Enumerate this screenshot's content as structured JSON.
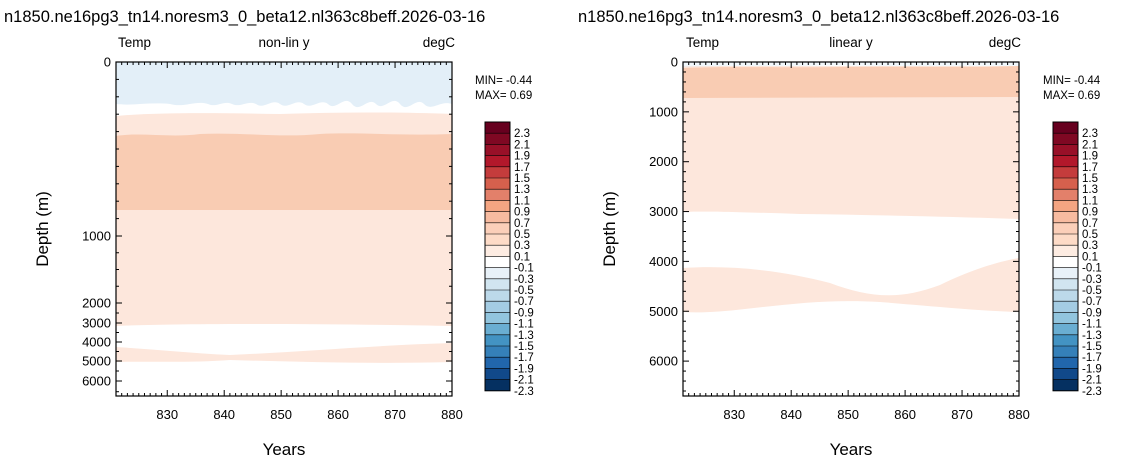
{
  "chart_data": [
    {
      "type": "contour",
      "title": "n1850.ne16pg3_tn14.noresm3_0_beta12.nl363c8beff.2026-03-16",
      "left_label": "Temp",
      "center_label": "non-lin y",
      "right_label": "degC",
      "xlabel": "Years",
      "ylabel": "Depth (m)",
      "xlim": [
        821,
        880
      ],
      "x_ticks": [
        830,
        840,
        850,
        860,
        870,
        880
      ],
      "y_ticks": [
        0,
        1000,
        2000,
        3000,
        4000,
        5000,
        6000
      ],
      "y_scale": "non-linear",
      "min_label": "MIN= -0.44",
      "max_label": "MAX=  0.69",
      "regions": [
        {
          "depth_top": 0,
          "depth_bottom": 200,
          "level_range": [
            -0.3,
            -0.1
          ]
        },
        {
          "depth_top": 200,
          "depth_bottom": 300,
          "level_range": [
            -0.1,
            0.1
          ]
        },
        {
          "depth_top": 300,
          "depth_bottom": 450,
          "level_range": [
            0.1,
            0.3
          ]
        },
        {
          "depth_top": 450,
          "depth_bottom": 800,
          "level_range": [
            0.3,
            0.5
          ]
        },
        {
          "depth_top": 800,
          "depth_bottom": 3000,
          "level_range": [
            0.1,
            0.3
          ]
        },
        {
          "depth_top": 3000,
          "depth_bottom": 4200,
          "level_range": [
            -0.1,
            0.1
          ]
        },
        {
          "depth_top": 4200,
          "depth_bottom": 5000,
          "level_range": [
            0.1,
            0.3
          ]
        },
        {
          "depth_top": 5000,
          "depth_bottom": 6700,
          "level_range": [
            -0.1,
            0.1
          ]
        }
      ]
    },
    {
      "type": "contour",
      "title": "n1850.ne16pg3_tn14.noresm3_0_beta12.nl363c8beff.2026-03-16",
      "left_label": "Temp",
      "center_label": "linear y",
      "right_label": "degC",
      "xlabel": "Years",
      "ylabel": "Depth (m)",
      "xlim": [
        821,
        880
      ],
      "x_ticks": [
        830,
        840,
        850,
        860,
        870,
        880
      ],
      "ylim": [
        6700,
        0
      ],
      "y_ticks": [
        0,
        1000,
        2000,
        3000,
        4000,
        5000,
        6000
      ],
      "y_scale": "linear",
      "min_label": "MIN= -0.44",
      "max_label": "MAX=  0.69",
      "regions": [
        {
          "depth_top": 0,
          "depth_bottom": 120,
          "level_range": [
            -0.1,
            0.1
          ]
        },
        {
          "depth_top": 120,
          "depth_bottom": 750,
          "level_range": [
            0.3,
            0.5
          ]
        },
        {
          "depth_top": 750,
          "depth_bottom": 3100,
          "level_range": [
            0.1,
            0.3
          ]
        },
        {
          "depth_top": 3100,
          "depth_bottom": 4200,
          "level_range": [
            -0.1,
            0.1
          ]
        },
        {
          "depth_top": 4200,
          "depth_bottom": 5050,
          "level_range": [
            0.1,
            0.3
          ]
        },
        {
          "depth_top": 5050,
          "depth_bottom": 6700,
          "level_range": [
            -0.1,
            0.1
          ]
        }
      ]
    }
  ],
  "colorbar": {
    "labels": [
      "2.3",
      "2.1",
      "1.9",
      "1.7",
      "1.5",
      "1.3",
      "1.1",
      "0.9",
      "0.7",
      "0.5",
      "0.3",
      "0.1",
      "-0.1",
      "-0.3",
      "-0.5",
      "-0.7",
      "-0.9",
      "-1.1",
      "-1.3",
      "-1.5",
      "-1.7",
      "-1.9",
      "-2.1",
      "-2.3"
    ],
    "colors": [
      "#67001f",
      "#7f0823",
      "#981028",
      "#b2182b",
      "#c43c3c",
      "#d6604d",
      "#e3806a",
      "#f4a582",
      "#f7bba0",
      "#fbcfb9",
      "#fddbc7",
      "#fdece2",
      "#ffffff",
      "#e8f1f8",
      "#d1e5f0",
      "#bcd9ea",
      "#a4cce3",
      "#92c5de",
      "#6aaed2",
      "#4393c3",
      "#3580b9",
      "#2166ac",
      "#11498a",
      "#053061"
    ]
  },
  "colors": {
    "c_neg": "#e3eff8",
    "c_zero": "#ffffff",
    "c_low": "#fde7dc",
    "c_mid": "#f9ccb3"
  }
}
